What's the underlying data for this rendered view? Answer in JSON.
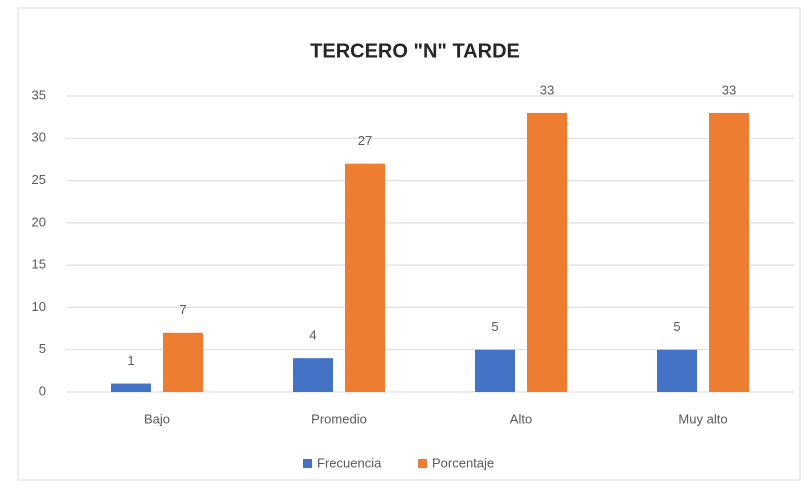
{
  "chart_data": {
    "type": "bar",
    "title": "TERCERO \"N\" TARDE",
    "categories": [
      "Bajo",
      "Promedio",
      "Alto",
      "Muy alto"
    ],
    "series": [
      {
        "name": "Frecuencia",
        "color": "#4472c4",
        "values": [
          1,
          4,
          5,
          5
        ]
      },
      {
        "name": "Porcentaje",
        "color": "#ed7d31",
        "values": [
          7,
          27,
          33,
          33
        ]
      }
    ],
    "ylim": [
      0,
      35
    ],
    "yticks": [
      0,
      5,
      10,
      15,
      20,
      25,
      30,
      35
    ],
    "grid": true,
    "legend": "bottom"
  }
}
